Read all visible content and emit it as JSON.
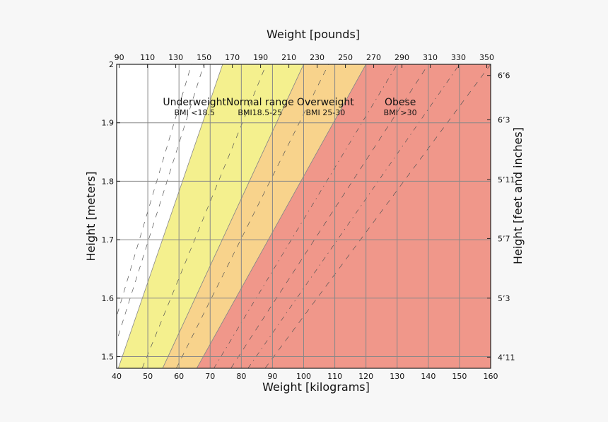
{
  "chart_data": {
    "type": "area",
    "xlabel": "Weight [kilograms]",
    "ylabel": "Height [meters]",
    "x2label": "Weight [pounds]",
    "y2label": "Height [feet and inches]",
    "xlim": [
      40,
      160
    ],
    "ylim": [
      1.48,
      2.0
    ],
    "x_ticks": [
      40,
      50,
      60,
      70,
      80,
      90,
      100,
      110,
      120,
      130,
      140,
      150,
      160
    ],
    "y_ticks": [
      1.5,
      1.6,
      1.7,
      1.8,
      1.9,
      2
    ],
    "x2_ticks": [
      90,
      110,
      130,
      150,
      170,
      190,
      210,
      230,
      250,
      270,
      290,
      310,
      330,
      350
    ],
    "y2_ticks": [
      {
        "label": "6’6",
        "meters": 1.981
      },
      {
        "label": "6’3",
        "meters": 1.905
      },
      {
        "label": "5’11",
        "meters": 1.803
      },
      {
        "label": "5’7",
        "meters": 1.702
      },
      {
        "label": "5’3",
        "meters": 1.6
      },
      {
        "label": "4’11",
        "meters": 1.499
      }
    ],
    "grid": true,
    "regions": [
      {
        "name": "Underweight",
        "sublabel": "BMI <18.5",
        "bmi_min": 0,
        "bmi_max": 18.5,
        "color": "#ffffff",
        "label_kg": 65,
        "label_h": 1.93
      },
      {
        "name": "Normal range",
        "sublabel": "BMI18.5-25",
        "bmi_min": 18.5,
        "bmi_max": 25,
        "color": "#f4f08e",
        "label_kg": 86,
        "label_h": 1.93
      },
      {
        "name": "Overweight",
        "sublabel": "BMI 25-30",
        "bmi_min": 25,
        "bmi_max": 30,
        "color": "#f8d38c",
        "label_kg": 107,
        "label_h": 1.93
      },
      {
        "name": "Obese",
        "sublabel": "BMI >30",
        "bmi_min": 30,
        "bmi_max": 1000,
        "color": "#f0978a",
        "label_kg": 131,
        "label_h": 1.93
      }
    ],
    "bmi_guide_lines": [
      16,
      17,
      22,
      27,
      32.5,
      35,
      37.5,
      40
    ]
  }
}
